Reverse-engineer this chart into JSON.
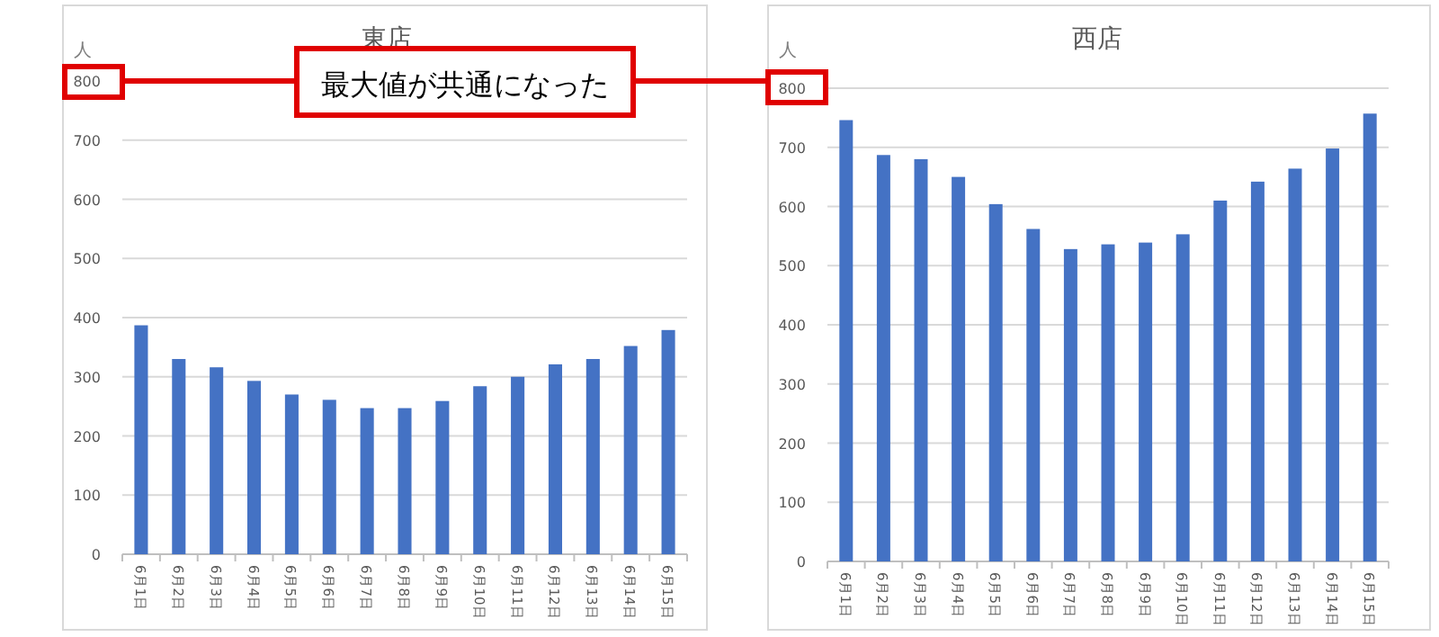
{
  "chart_data": [
    {
      "type": "bar",
      "title": "東店",
      "ylabel": "人",
      "categories": [
        "6月1日",
        "6月2日",
        "6月3日",
        "6月4日",
        "6月5日",
        "6月6日",
        "6月7日",
        "6月8日",
        "6月9日",
        "6月10日",
        "6月11日",
        "6月12日",
        "6月13日",
        "6月14日",
        "6月15日"
      ],
      "values": [
        387,
        330,
        316,
        293,
        270,
        261,
        247,
        247,
        259,
        284,
        300,
        321,
        330,
        352,
        379
      ],
      "color": "#4472c4",
      "ylim": [
        0,
        800
      ],
      "yticks": [
        0,
        100,
        200,
        300,
        400,
        500,
        600,
        700,
        800
      ],
      "grid": "y",
      "annotations": [
        "最大値が共通になった"
      ]
    },
    {
      "type": "bar",
      "title": "西店",
      "ylabel": "人",
      "categories": [
        "6月1日",
        "6月2日",
        "6月3日",
        "6月4日",
        "6月5日",
        "6月6日",
        "6月7日",
        "6月8日",
        "6月9日",
        "6月10日",
        "6月11日",
        "6月12日",
        "6月13日",
        "6月14日",
        "6月15日"
      ],
      "values": [
        746,
        687,
        680,
        650,
        604,
        562,
        528,
        536,
        539,
        553,
        610,
        642,
        664,
        698,
        757
      ],
      "color": "#4472c4",
      "ylim": [
        0,
        800
      ],
      "yticks": [
        0,
        100,
        200,
        300,
        400,
        500,
        600,
        700,
        800
      ],
      "grid": "y"
    }
  ]
}
